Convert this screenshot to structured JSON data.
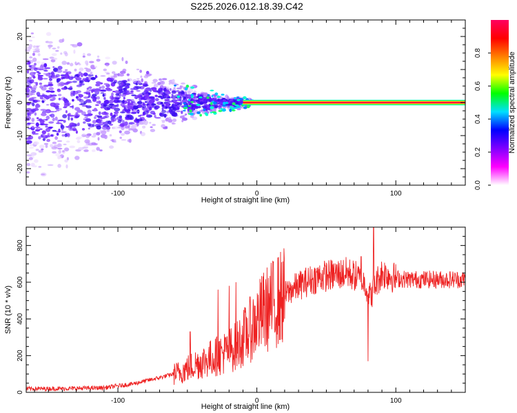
{
  "title": "S225.2026.012.18.39.C42",
  "chart_data": [
    {
      "type": "heatmap",
      "name": "spectrogram",
      "xlabel": "Height of straight line (km)",
      "ylabel": "Frequency (Hz)",
      "xlim": [
        -166,
        150
      ],
      "ylim": [
        -25,
        25
      ],
      "xticks": [
        -100,
        0,
        100
      ],
      "xtick_labels": [
        "-100",
        "0",
        "100"
      ],
      "yticks": [
        -20,
        -10,
        0,
        10,
        20
      ],
      "ytick_labels": [
        "-20",
        "-10",
        "0",
        "10",
        "20"
      ],
      "colorbar": {
        "label": "Normalized spectral amplitude",
        "range": [
          0,
          1
        ],
        "ticks": [
          0.0,
          0.2,
          0.4,
          0.6,
          0.8
        ],
        "tick_labels": [
          "0.0",
          "0.2",
          "0.4",
          "0.6",
          "0.8"
        ],
        "colors": [
          "#ffffff",
          "#ff00ff",
          "#8000ff",
          "#0000ff",
          "#00e0ff",
          "#00ff00",
          "#ffff00",
          "#ff8000",
          "#ff0000",
          "#ff0060"
        ]
      },
      "description_points": {
        "scatter_region_x": [
          -166,
          -20
        ],
        "scatter_freq_spread_hz": [
          -25,
          25
        ],
        "steady_line_x": [
          -10,
          150
        ],
        "steady_line_freq_hz": 0,
        "steady_line_amplitude": 0.95
      }
    },
    {
      "type": "line",
      "name": "snr",
      "xlabel": "Height of straight line (km)",
      "ylabel": "SNR (10 * v/v)",
      "xlim": [
        -166,
        150
      ],
      "ylim": [
        0,
        900
      ],
      "xticks": [
        -100,
        0,
        100
      ],
      "xtick_labels": [
        "-100",
        "0",
        "100"
      ],
      "yticks": [
        0,
        200,
        400,
        600,
        800
      ],
      "ytick_labels": [
        "0",
        "200",
        "400",
        "600",
        "800"
      ],
      "color": "#ee2222",
      "envelope": {
        "x": [
          -166,
          -140,
          -110,
          -90,
          -70,
          -55,
          -45,
          -35,
          -25,
          -15,
          -5,
          5,
          15,
          25,
          35,
          45,
          55,
          65,
          72,
          78,
          82,
          86,
          90,
          95,
          100,
          110,
          120,
          130,
          140,
          150
        ],
        "y": [
          20,
          20,
          25,
          45,
          80,
          110,
          150,
          180,
          210,
          250,
          340,
          440,
          500,
          560,
          600,
          630,
          640,
          650,
          630,
          590,
          520,
          600,
          650,
          640,
          620,
          615,
          615,
          615,
          615,
          615
        ]
      },
      "spikes": [
        {
          "x": -48,
          "y": 330
        },
        {
          "x": -28,
          "y": 560
        },
        {
          "x": -20,
          "y": 580
        },
        {
          "x": -15,
          "y": 600
        },
        {
          "x": 75,
          "y": 740
        },
        {
          "x": 80,
          "y": 170
        },
        {
          "x": 84,
          "y": 900
        }
      ]
    }
  ]
}
